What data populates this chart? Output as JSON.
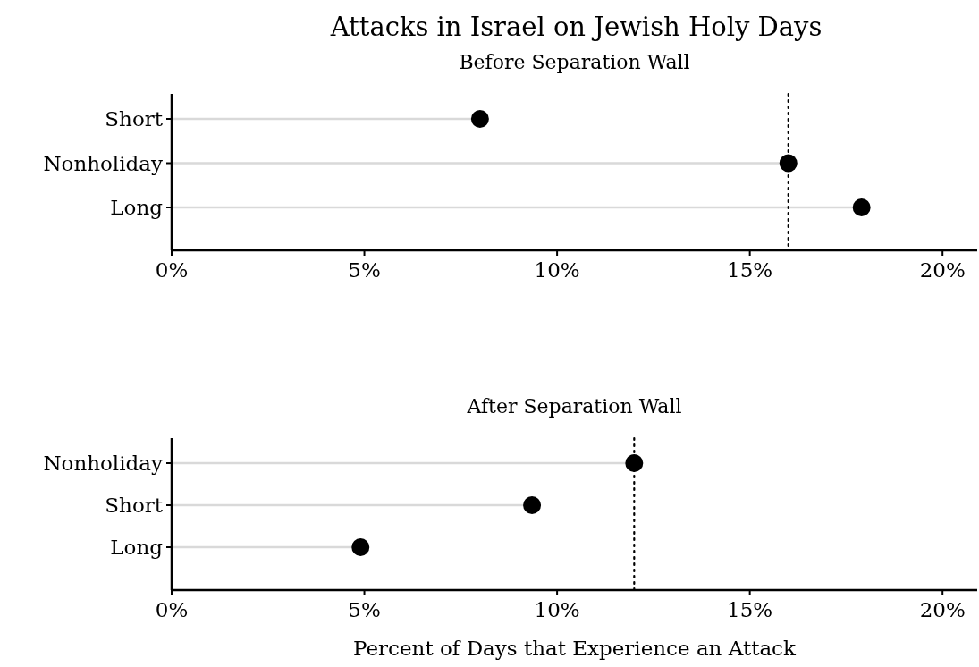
{
  "chart_data": [
    {
      "type": "lollipop",
      "orientation": "horizontal",
      "title": "Attacks in Israel on Jewish Holy Days",
      "subtitle": "Before Separation Wall",
      "categories": [
        "Short",
        "Nonholiday",
        "Long"
      ],
      "values": [
        8.0,
        16.0,
        17.9
      ],
      "color": "#000000",
      "marker": "circle",
      "xlim": [
        0,
        20.9
      ],
      "xticks": [
        {
          "value": 0,
          "label": "0%"
        },
        {
          "value": 5,
          "label": "5%"
        },
        {
          "value": 10,
          "label": "10%"
        },
        {
          "value": 15,
          "label": "15%"
        },
        {
          "value": 20,
          "label": "20%"
        }
      ],
      "ref_lines": [
        {
          "axis": "x",
          "value": 16.0,
          "line_style": "dotted",
          "color": "#000000"
        }
      ]
    },
    {
      "type": "lollipop",
      "orientation": "horizontal",
      "subtitle": "After Separation Wall",
      "xlabel": "Percent of Days that Experience an Attack",
      "categories": [
        "Nonholiday",
        "Short",
        "Long"
      ],
      "values": [
        12.0,
        9.35,
        4.9
      ],
      "color": "#000000",
      "marker": "circle",
      "xlim": [
        0,
        20.9
      ],
      "xticks": [
        {
          "value": 0,
          "label": "0%"
        },
        {
          "value": 5,
          "label": "5%"
        },
        {
          "value": 10,
          "label": "10%"
        },
        {
          "value": 15,
          "label": "15%"
        },
        {
          "value": 20,
          "label": "20%"
        }
      ],
      "ref_lines": [
        {
          "axis": "x",
          "value": 12.0,
          "line_style": "dotted",
          "color": "#000000"
        }
      ]
    }
  ]
}
